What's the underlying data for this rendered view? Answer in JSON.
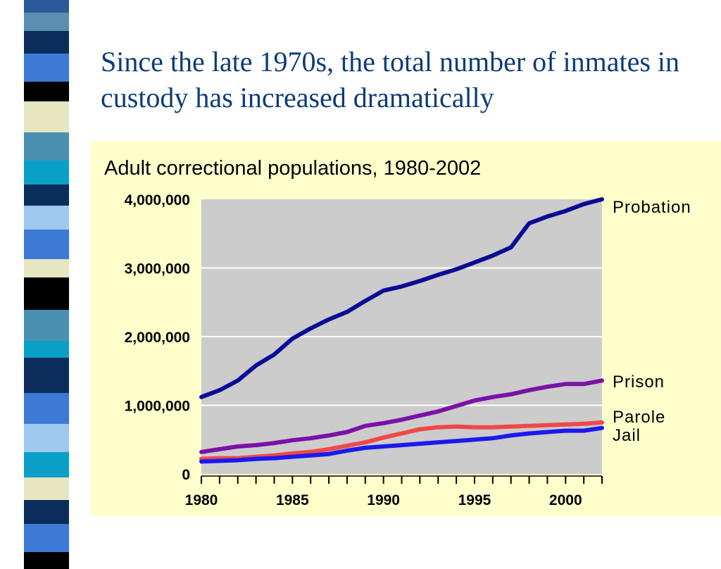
{
  "slide": {
    "title": "Since the late 1970s, the total number of inmates in custody has increased dramatically"
  },
  "decor": {
    "stripe_colors": [
      "#2a5a9a",
      "#5b8fb0",
      "#0a2d5c",
      "#3d7ad6",
      "#000000",
      "#e6e6c0",
      "#4a90b0",
      "#0aa0c8",
      "#0a2d5c",
      "#9ec8ee",
      "#3d7ad6",
      "#e6e6c0",
      "#000000",
      "#4a90b0",
      "#0aa0c8",
      "#0a2d5c",
      "#3d7ad6",
      "#9ec8ee",
      "#0aa0c8",
      "#e6e6c0",
      "#0a2d5c",
      "#3d7ad6",
      "#000000"
    ]
  },
  "chart_data": {
    "type": "line",
    "title": "Adult correctional populations, 1980-2002",
    "xlabel": "",
    "ylabel": "",
    "x": [
      1980,
      1981,
      1982,
      1983,
      1984,
      1985,
      1986,
      1987,
      1988,
      1989,
      1990,
      1991,
      1992,
      1993,
      1994,
      1995,
      1996,
      1997,
      1998,
      1999,
      2000,
      2001,
      2002
    ],
    "xlim": [
      1980,
      2002
    ],
    "xticks": [
      "1980",
      "1985",
      "1990",
      "1995",
      "2000"
    ],
    "ylim": [
      0,
      4000000
    ],
    "yticks": [
      "0",
      "1,000,000",
      "2,000,000",
      "3,000,000",
      "4,000,000"
    ],
    "grid": "horizontal",
    "legend": "labels at line ends (right)",
    "series": [
      {
        "name": "Probation",
        "color": "#0a0a96",
        "values": [
          1120000,
          1220000,
          1360000,
          1580000,
          1740000,
          1970000,
          2120000,
          2250000,
          2360000,
          2520000,
          2670000,
          2730000,
          2810000,
          2900000,
          2980000,
          3080000,
          3180000,
          3300000,
          3650000,
          3750000,
          3830000,
          3930000,
          4000000
        ]
      },
      {
        "name": "Prison",
        "color": "#7b12a8",
        "values": [
          320000,
          360000,
          400000,
          420000,
          450000,
          490000,
          520000,
          560000,
          610000,
          700000,
          740000,
          790000,
          850000,
          910000,
          990000,
          1070000,
          1120000,
          1160000,
          1220000,
          1270000,
          1310000,
          1310000,
          1360000
        ]
      },
      {
        "name": "Parole",
        "color": "#f04848",
        "values": [
          220000,
          230000,
          230000,
          250000,
          270000,
          300000,
          320000,
          360000,
          410000,
          460000,
          530000,
          590000,
          650000,
          680000,
          690000,
          680000,
          680000,
          690000,
          700000,
          710000,
          720000,
          730000,
          750000
        ]
      },
      {
        "name": "Jail",
        "color": "#1a1aee",
        "values": [
          180000,
          190000,
          200000,
          220000,
          230000,
          250000,
          270000,
          290000,
          340000,
          380000,
          400000,
          420000,
          440000,
          460000,
          480000,
          500000,
          520000,
          560000,
          590000,
          610000,
          630000,
          630000,
          670000
        ]
      }
    ]
  }
}
